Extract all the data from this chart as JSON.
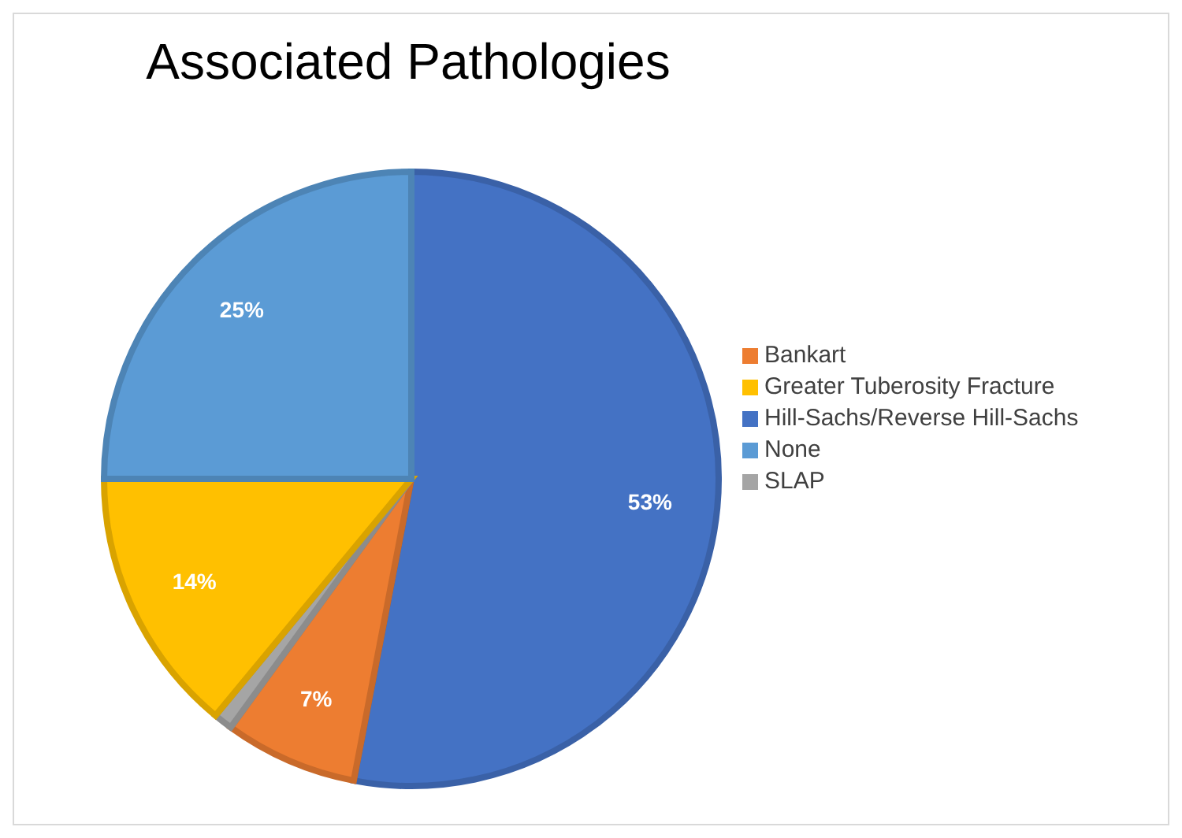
{
  "chart_data": {
    "type": "pie",
    "title": "Associated Pathologies",
    "categories": [
      "Hill-Sachs/Reverse Hill-Sachs",
      "Bankart",
      "SLAP",
      "Greater Tuberosity Fracture",
      "None"
    ],
    "values": [
      53,
      7,
      1,
      14,
      25
    ],
    "colors": [
      "#4472c4",
      "#ed7d31",
      "#a5a5a5",
      "#ffc000",
      "#5b9bd5"
    ],
    "value_labels": [
      "53%",
      "7%",
      null,
      "14%",
      "25%"
    ],
    "legend": "right"
  }
}
